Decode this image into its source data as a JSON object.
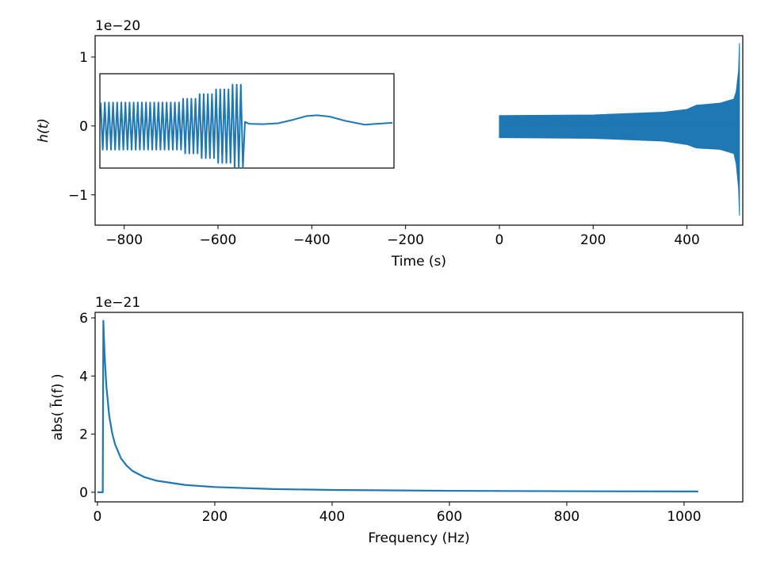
{
  "chart_data": [
    {
      "type": "band",
      "ylabel": "h(t)",
      "xlabel": "Time (s)",
      "offset_label": "1e−20",
      "x": [
        0,
        200,
        350,
        400,
        420,
        470,
        500,
        505,
        510,
        512
      ],
      "series": [
        {
          "color": "#1f77b4",
          "values": [
            0.15,
            0.16,
            0.2,
            0.24,
            0.3,
            0.33,
            0.39,
            0.5,
            0.8,
            1.2
          ]
        },
        {
          "color": "#1f77b4",
          "values": [
            -0.17,
            -0.18,
            -0.22,
            -0.27,
            -0.32,
            -0.34,
            -0.4,
            -0.55,
            -0.9,
            -1.3
          ]
        }
      ],
      "xlim": [
        -862,
        519
      ],
      "ylim": [
        -1.44,
        1.31
      ],
      "xticks": [
        {
          "value": -800,
          "label": "−800"
        },
        {
          "value": -600,
          "label": "−600"
        },
        {
          "value": -400,
          "label": "−400"
        },
        {
          "value": -200,
          "label": "−200"
        },
        0,
        200,
        400
      ],
      "yticks": [
        {
          "value": -1,
          "label": "−1"
        },
        0,
        1
      ],
      "inset": {
        "type": "line",
        "color": "#1f77b4",
        "xlim": [
          0,
          371
        ],
        "ylim": [
          -1,
          1
        ],
        "x": [
          1,
          3.6,
          6.2,
          8.8,
          11.4,
          14,
          16.6,
          19.2,
          21.8,
          24.4,
          27,
          29.6,
          32.2,
          34.8,
          37.4,
          40,
          42.6,
          45.2,
          47.8,
          50.4,
          53,
          55.6,
          58.2,
          60.8,
          63.4,
          66,
          68.6,
          71.2,
          73.8,
          76.4,
          79,
          81.6,
          84.2,
          86.8,
          89.4,
          92,
          94.6,
          97.2,
          99.8,
          102.4,
          105,
          107.6,
          110.2,
          112.8,
          115.4,
          118,
          120.6,
          123.2,
          125.8,
          128.4,
          131,
          133.6,
          136.2,
          138.8,
          141.4,
          144,
          146.6,
          149.2,
          151.8,
          154.4,
          157,
          159.6,
          162.2,
          164.8,
          167.4,
          170,
          172.6,
          175.2,
          177.8,
          180.4,
          183,
          188,
          205,
          225,
          245,
          260,
          274,
          290,
          310,
          334,
          350,
          369
        ],
        "values": [
          0.39,
          -0.61,
          0.39,
          -0.61,
          0.39,
          -0.61,
          0.39,
          -0.61,
          0.39,
          -0.61,
          0.39,
          -0.61,
          0.39,
          -0.61,
          0.39,
          -0.61,
          0.39,
          -0.61,
          0.39,
          -0.61,
          0.39,
          -0.61,
          0.39,
          -0.61,
          0.39,
          -0.61,
          0.39,
          -0.61,
          0.39,
          -0.61,
          0.39,
          -0.61,
          0.39,
          -0.61,
          0.39,
          -0.61,
          0.39,
          -0.61,
          0.39,
          -0.61,
          0.47,
          -0.69,
          0.47,
          -0.69,
          0.47,
          -0.69,
          0.47,
          -0.69,
          0.57,
          -0.79,
          0.57,
          -0.79,
          0.57,
          -0.79,
          0.57,
          -0.79,
          0.67,
          -0.89,
          0.67,
          -0.89,
          0.67,
          -0.89,
          0.67,
          -0.89,
          0.77,
          -0.99,
          0.77,
          -0.99,
          0.77,
          -0.99,
          -0.02,
          -0.06,
          -0.07,
          -0.05,
          0.03,
          0.1,
          0.12,
          0.09,
          0.0,
          -0.08,
          -0.06,
          -0.04
        ]
      }
    },
    {
      "type": "line",
      "ylabel": "abs( h̃(f) )",
      "xlabel": "Frequency (Hz)",
      "offset_label": "1e−21",
      "color": "#1f77b4",
      "x": [
        0,
        9,
        10,
        12,
        15,
        20,
        25,
        30,
        40,
        50,
        60,
        80,
        100,
        150,
        200,
        300,
        400,
        600,
        800,
        1024
      ],
      "values": [
        0,
        0,
        5.9,
        4.8,
        3.69,
        2.63,
        2.04,
        1.65,
        1.17,
        0.91,
        0.73,
        0.52,
        0.4,
        0.25,
        0.18,
        0.11,
        0.08,
        0.05,
        0.036,
        0.028
      ],
      "xlim": [
        -4,
        1100
      ],
      "ylim": [
        -0.33,
        6.19
      ],
      "xticks": [
        0,
        200,
        400,
        600,
        800,
        1000
      ],
      "yticks": [
        0,
        2,
        4,
        6
      ]
    }
  ]
}
